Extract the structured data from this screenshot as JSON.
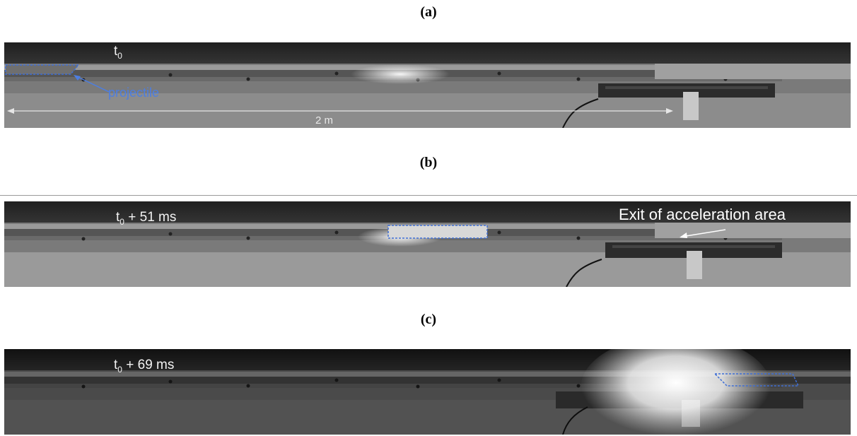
{
  "panels": [
    {
      "label": "(a)",
      "time_base": "t",
      "time_sub": "0",
      "time_offset": "",
      "projectile_label": "projectile",
      "distance_label": "2 m"
    },
    {
      "label": "(b)",
      "time_base": "t",
      "time_sub": "0",
      "time_offset": " + 51 ms",
      "exit_label": "Exit of acceleration area"
    },
    {
      "label": "(c)",
      "time_base": "t",
      "time_sub": "0",
      "time_offset": " + 69 ms"
    }
  ],
  "colors": {
    "outline": "#3f6fd6",
    "annotation_text": "#4d7ee0"
  }
}
